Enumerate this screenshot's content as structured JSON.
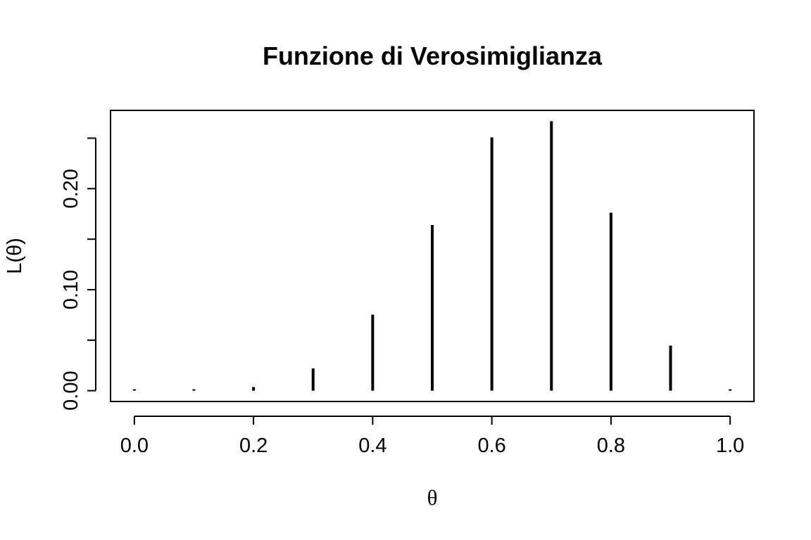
{
  "chart_data": {
    "type": "bar",
    "title": "Funzione di Verosimiglianza",
    "xlabel": "θ",
    "ylabel": "L(θ)",
    "x": [
      0.0,
      0.1,
      0.2,
      0.3,
      0.4,
      0.5,
      0.6,
      0.7,
      0.8,
      0.9,
      1.0
    ],
    "values": [
      0.0,
      9e-07,
      0.0036,
      0.022,
      0.0753,
      0.164,
      0.2508,
      0.2668,
      0.1762,
      0.0446,
      0.0
    ],
    "xlim": [
      -0.04,
      1.04
    ],
    "ylim": [
      -0.0107,
      0.2775
    ],
    "xticks": [
      0,
      0.2,
      0.4,
      0.6,
      0.8,
      1
    ],
    "xtick_labels": [
      "0.0",
      "0.2",
      "0.4",
      "0.6",
      "0.8",
      "1.0"
    ],
    "yticks": [
      0,
      0.05,
      0.1,
      0.15,
      0.2,
      0.25
    ],
    "ytick_labels": [
      "0.00",
      "",
      "0.10",
      "",
      "0.20",
      ""
    ],
    "grid": false,
    "legend": "none"
  }
}
